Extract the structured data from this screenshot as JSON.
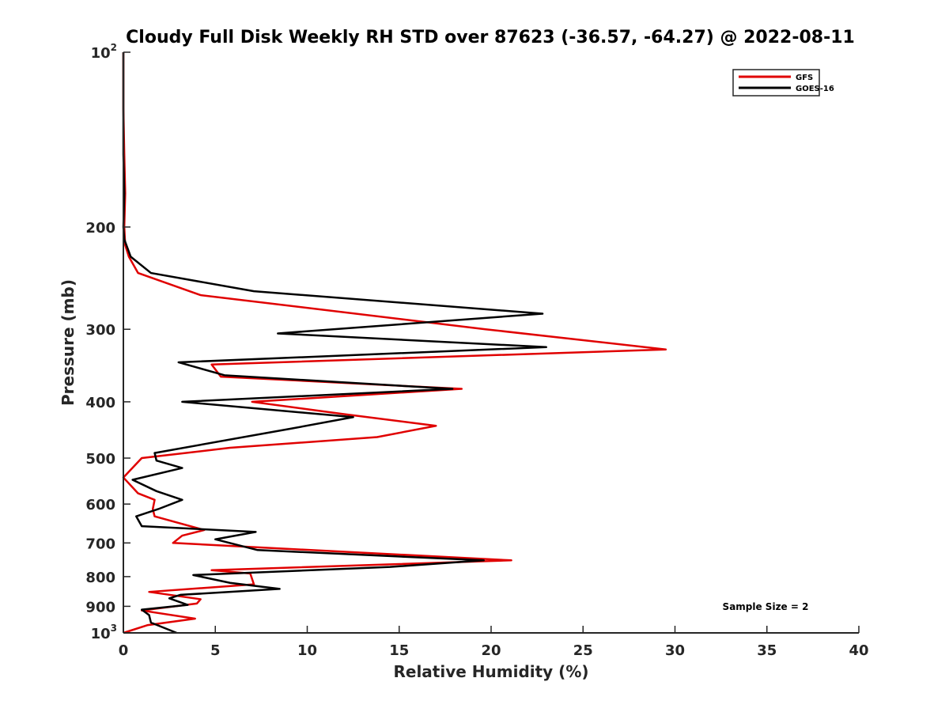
{
  "chart_data": {
    "type": "line",
    "title": "Cloudy Full Disk Weekly RH STD over 87623 (-36.57, -64.27) @ 2022-08-11",
    "xlabel": "Relative Humidity (%)",
    "ylabel": "Pressure (mb)",
    "xlim": [
      0,
      40
    ],
    "ylim": [
      100,
      1000
    ],
    "yscale": "log",
    "yreversed": true,
    "grid": false,
    "legend_position": "top-right",
    "x_ticks": [
      0,
      5,
      10,
      15,
      20,
      25,
      30,
      35,
      40
    ],
    "x_tick_labels": [
      "0",
      "5",
      "10",
      "15",
      "20",
      "25",
      "30",
      "35",
      "40"
    ],
    "y_ticks": [
      100,
      200,
      300,
      400,
      500,
      600,
      700,
      800,
      900,
      1000
    ],
    "y_tick_labels": [
      {
        "base": "10",
        "exp": "2"
      },
      {
        "base": "200",
        "exp": ""
      },
      {
        "base": "300",
        "exp": ""
      },
      {
        "base": "400",
        "exp": ""
      },
      {
        "base": "500",
        "exp": ""
      },
      {
        "base": "600",
        "exp": ""
      },
      {
        "base": "700",
        "exp": ""
      },
      {
        "base": "800",
        "exp": ""
      },
      {
        "base": "900",
        "exp": ""
      },
      {
        "base": "10",
        "exp": "3"
      }
    ],
    "annotation": "Sample Size = 2",
    "series": [
      {
        "name": "GFS",
        "color": "#e00000",
        "points": [
          [
            0.0,
            100
          ],
          [
            0.0,
            125
          ],
          [
            0.05,
            150
          ],
          [
            0.1,
            175
          ],
          [
            0.05,
            200
          ],
          [
            0.1,
            215
          ],
          [
            0.3,
            225
          ],
          [
            0.8,
            240
          ],
          [
            4.2,
            262
          ],
          [
            19.7,
            300
          ],
          [
            29.5,
            325
          ],
          [
            4.8,
            345
          ],
          [
            5.3,
            362
          ],
          [
            18.4,
            380
          ],
          [
            7.0,
            400
          ],
          [
            12.0,
            420
          ],
          [
            17.0,
            440
          ],
          [
            13.8,
            460
          ],
          [
            5.8,
            480
          ],
          [
            1.0,
            500
          ],
          [
            0.0,
            540
          ],
          [
            0.8,
            575
          ],
          [
            1.7,
            590
          ],
          [
            1.6,
            612
          ],
          [
            1.7,
            630
          ],
          [
            4.4,
            665
          ],
          [
            3.2,
            680
          ],
          [
            2.7,
            700
          ],
          [
            21.1,
            750
          ],
          [
            4.8,
            780
          ],
          [
            6.9,
            790
          ],
          [
            7.1,
            825
          ],
          [
            1.4,
            850
          ],
          [
            4.2,
            875
          ],
          [
            4.0,
            890
          ],
          [
            1.0,
            915
          ],
          [
            3.9,
            945
          ],
          [
            1.3,
            970
          ],
          [
            0.0,
            1000
          ]
        ]
      },
      {
        "name": "GOES-16",
        "color": "#000000",
        "points": [
          [
            0.0,
            100
          ],
          [
            0.0,
            125
          ],
          [
            0.0,
            150
          ],
          [
            0.05,
            175
          ],
          [
            0.0,
            200
          ],
          [
            0.05,
            210
          ],
          [
            0.4,
            225
          ],
          [
            1.5,
            240
          ],
          [
            7.1,
            258
          ],
          [
            22.8,
            282
          ],
          [
            8.4,
            305
          ],
          [
            23.0,
            322
          ],
          [
            3.0,
            342
          ],
          [
            5.5,
            360
          ],
          [
            17.9,
            380
          ],
          [
            3.2,
            400
          ],
          [
            12.5,
            425
          ],
          [
            9.1,
            445
          ],
          [
            1.7,
            490
          ],
          [
            1.8,
            505
          ],
          [
            3.2,
            520
          ],
          [
            0.5,
            545
          ],
          [
            1.8,
            570
          ],
          [
            3.2,
            590
          ],
          [
            1.9,
            612
          ],
          [
            0.7,
            630
          ],
          [
            1.0,
            655
          ],
          [
            7.2,
            670
          ],
          [
            5.0,
            690
          ],
          [
            7.3,
            720
          ],
          [
            19.6,
            750
          ],
          [
            14.5,
            770
          ],
          [
            3.8,
            795
          ],
          [
            5.8,
            820
          ],
          [
            8.5,
            840
          ],
          [
            3.1,
            860
          ],
          [
            2.5,
            872
          ],
          [
            3.5,
            895
          ],
          [
            1.0,
            912
          ],
          [
            1.4,
            932
          ],
          [
            1.5,
            960
          ],
          [
            2.9,
            1000
          ]
        ]
      }
    ]
  }
}
